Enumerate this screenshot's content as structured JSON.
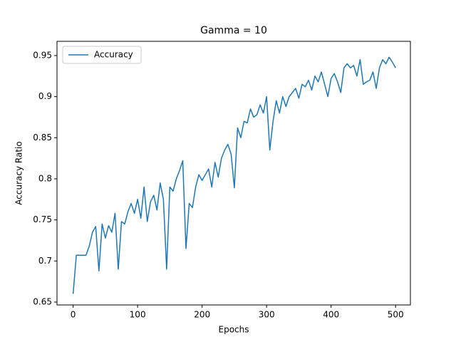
{
  "chart_data": {
    "type": "line",
    "title": "Gamma = 10",
    "xlabel": "Epochs",
    "ylabel": "Accuracy Ratio",
    "x": [
      0,
      5,
      10,
      15,
      20,
      25,
      30,
      35,
      40,
      45,
      50,
      55,
      60,
      65,
      70,
      75,
      80,
      85,
      90,
      95,
      100,
      105,
      110,
      115,
      120,
      125,
      130,
      135,
      140,
      145,
      150,
      155,
      160,
      165,
      170,
      175,
      180,
      185,
      190,
      195,
      200,
      205,
      210,
      215,
      220,
      225,
      230,
      235,
      240,
      245,
      250,
      255,
      260,
      265,
      270,
      275,
      280,
      285,
      290,
      295,
      300,
      305,
      310,
      315,
      320,
      325,
      330,
      335,
      340,
      345,
      350,
      355,
      360,
      365,
      370,
      375,
      380,
      385,
      390,
      395,
      400,
      405,
      410,
      415,
      420,
      425,
      430,
      435,
      440,
      445,
      450,
      455,
      460,
      465,
      470,
      475,
      480,
      485,
      490,
      495,
      500
    ],
    "series": [
      {
        "name": "Accuracy",
        "color": "#1f77b4",
        "values": [
          0.66,
          0.707,
          0.707,
          0.707,
          0.707,
          0.718,
          0.735,
          0.742,
          0.688,
          0.745,
          0.728,
          0.743,
          0.735,
          0.758,
          0.69,
          0.748,
          0.745,
          0.76,
          0.77,
          0.758,
          0.775,
          0.752,
          0.79,
          0.748,
          0.772,
          0.78,
          0.762,
          0.795,
          0.775,
          0.69,
          0.79,
          0.785,
          0.8,
          0.81,
          0.822,
          0.715,
          0.77,
          0.765,
          0.79,
          0.805,
          0.798,
          0.805,
          0.812,
          0.79,
          0.82,
          0.802,
          0.825,
          0.835,
          0.842,
          0.83,
          0.789,
          0.862,
          0.85,
          0.87,
          0.868,
          0.885,
          0.875,
          0.878,
          0.89,
          0.88,
          0.9,
          0.835,
          0.87,
          0.895,
          0.88,
          0.9,
          0.888,
          0.9,
          0.905,
          0.91,
          0.898,
          0.915,
          0.912,
          0.92,
          0.908,
          0.925,
          0.918,
          0.93,
          0.915,
          0.9,
          0.922,
          0.928,
          0.918,
          0.905,
          0.935,
          0.94,
          0.935,
          0.938,
          0.925,
          0.945,
          0.915,
          0.918,
          0.92,
          0.93,
          0.91,
          0.935,
          0.945,
          0.94,
          0.948,
          0.942,
          0.935
        ]
      }
    ],
    "xlim": [
      -25,
      523
    ],
    "ylim": [
      0.6465,
      0.9673
    ],
    "xticks": [
      0,
      100,
      200,
      300,
      400,
      500
    ],
    "yticks": [
      0.65,
      0.7,
      0.75,
      0.8,
      0.85,
      0.9,
      0.95
    ],
    "legend": "upper left",
    "grid": false
  }
}
